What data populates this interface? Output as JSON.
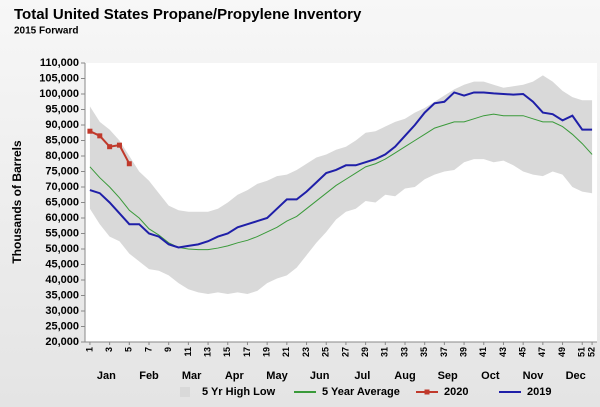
{
  "chart_data": {
    "type": "line",
    "title": "Total United States Propane/Propylene Inventory",
    "subtitle": "2015 Forward",
    "y_label": "Thousands of Barrels",
    "months": [
      "Jan",
      "Feb",
      "Mar",
      "Apr",
      "May",
      "Jun",
      "Jul",
      "Aug",
      "Sep",
      "Oct",
      "Nov",
      "Dec"
    ],
    "x": [
      1,
      2,
      3,
      4,
      5,
      6,
      7,
      8,
      9,
      10,
      11,
      12,
      13,
      14,
      15,
      16,
      17,
      18,
      19,
      20,
      21,
      22,
      23,
      24,
      25,
      26,
      27,
      28,
      29,
      30,
      31,
      32,
      33,
      34,
      35,
      36,
      37,
      38,
      39,
      40,
      41,
      42,
      43,
      44,
      45,
      46,
      47,
      48,
      49,
      50,
      51,
      52
    ],
    "xlim": [
      0.5,
      52.5
    ],
    "xticks": [
      1,
      3,
      5,
      7,
      9,
      11,
      13,
      15,
      17,
      19,
      21,
      23,
      25,
      27,
      29,
      31,
      33,
      35,
      37,
      39,
      41,
      43,
      45,
      47,
      49,
      51,
      52
    ],
    "ylim": [
      20000,
      110000
    ],
    "yticks": [
      {
        "value": 20000,
        "label": "20,000"
      },
      {
        "value": 25000,
        "label": "25,000"
      },
      {
        "value": 30000,
        "label": "30,000"
      },
      {
        "value": 35000,
        "label": "35,000"
      },
      {
        "value": 40000,
        "label": "40,000"
      },
      {
        "value": 45000,
        "label": "45,000"
      },
      {
        "value": 50000,
        "label": "50,000"
      },
      {
        "value": 55000,
        "label": "55,000"
      },
      {
        "value": 60000,
        "label": "60,000"
      },
      {
        "value": 65000,
        "label": "65,000"
      },
      {
        "value": 70000,
        "label": "70,000"
      },
      {
        "value": 75000,
        "label": "75,000"
      },
      {
        "value": 80000,
        "label": "80,000"
      },
      {
        "value": 85000,
        "label": "85,000"
      },
      {
        "value": 90000,
        "label": "90,000"
      },
      {
        "value": 95000,
        "label": "95,000"
      },
      {
        "value": 100000,
        "label": "100,000"
      },
      {
        "value": 105000,
        "label": "105,000"
      },
      {
        "value": 110000,
        "label": "110,000"
      }
    ],
    "grid": false,
    "legend": "bottom",
    "series": [
      {
        "name": "5 Yr High Low",
        "color": "#d9d9d9",
        "high": [
          96000,
          91000,
          88500,
          85000,
          80000,
          75000,
          72000,
          68000,
          64000,
          62500,
          62000,
          62000,
          62000,
          63000,
          65000,
          67500,
          69000,
          71000,
          72000,
          73500,
          74000,
          75500,
          77500,
          79500,
          80500,
          82000,
          83000,
          85000,
          87500,
          88000,
          89500,
          91000,
          92000,
          94000,
          95500,
          97500,
          99500,
          101500,
          103000,
          104000,
          104000,
          103000,
          102000,
          102500,
          103000,
          104000,
          106000,
          104000,
          101000,
          99000,
          98000,
          98000
        ],
        "low": [
          63000,
          58000,
          54000,
          52500,
          48500,
          46000,
          43500,
          43000,
          41500,
          39000,
          37000,
          36000,
          35500,
          36000,
          35500,
          36000,
          35500,
          36500,
          39000,
          40500,
          41500,
          44000,
          48000,
          52000,
          55500,
          59500,
          62000,
          63000,
          65500,
          65000,
          67500,
          67000,
          69500,
          70000,
          72500,
          74000,
          75000,
          75500,
          78000,
          79000,
          79000,
          78000,
          78500,
          77000,
          75000,
          74000,
          73500,
          75000,
          74000,
          70000,
          68500,
          68000
        ]
      },
      {
        "name": "5 Year Average",
        "color": "#3a9a3a",
        "values": [
          76500,
          73000,
          70000,
          66500,
          62500,
          60000,
          56500,
          54500,
          52000,
          50500,
          50000,
          49800,
          49800,
          50300,
          51000,
          52000,
          52800,
          54000,
          55500,
          57000,
          59000,
          60500,
          63000,
          65500,
          68000,
          70500,
          72500,
          74500,
          76500,
          77500,
          79000,
          81000,
          83000,
          85000,
          87000,
          89000,
          90000,
          91000,
          91000,
          92000,
          93000,
          93500,
          93000,
          93000,
          93000,
          92000,
          91000,
          91000,
          89500,
          87000,
          84000,
          80500
        ]
      },
      {
        "name": "2020",
        "color": "#c0392b",
        "marker": "square",
        "values": [
          88000,
          86500,
          83000,
          83500,
          77500,
          null,
          null,
          null,
          null,
          null,
          null,
          null,
          null,
          null,
          null,
          null,
          null,
          null,
          null,
          null,
          null,
          null,
          null,
          null,
          null,
          null,
          null,
          null,
          null,
          null,
          null,
          null,
          null,
          null,
          null,
          null,
          null,
          null,
          null,
          null,
          null,
          null,
          null,
          null,
          null,
          null,
          null,
          null,
          null,
          null,
          null,
          null
        ]
      },
      {
        "name": "2019",
        "color": "#1f1fa8",
        "values": [
          69000,
          68000,
          65000,
          61500,
          58000,
          58000,
          55000,
          54000,
          51500,
          50500,
          51000,
          51500,
          52500,
          54000,
          55000,
          57000,
          58000,
          59000,
          60000,
          63000,
          66000,
          66000,
          68500,
          71500,
          74500,
          75500,
          77000,
          77000,
          78000,
          79000,
          80500,
          83000,
          86500,
          90000,
          94000,
          97000,
          97500,
          100500,
          99500,
          100500,
          100500,
          100200,
          100000,
          99800,
          100000,
          97500,
          94000,
          93500,
          91500,
          93000,
          88500,
          88500
        ]
      }
    ]
  }
}
